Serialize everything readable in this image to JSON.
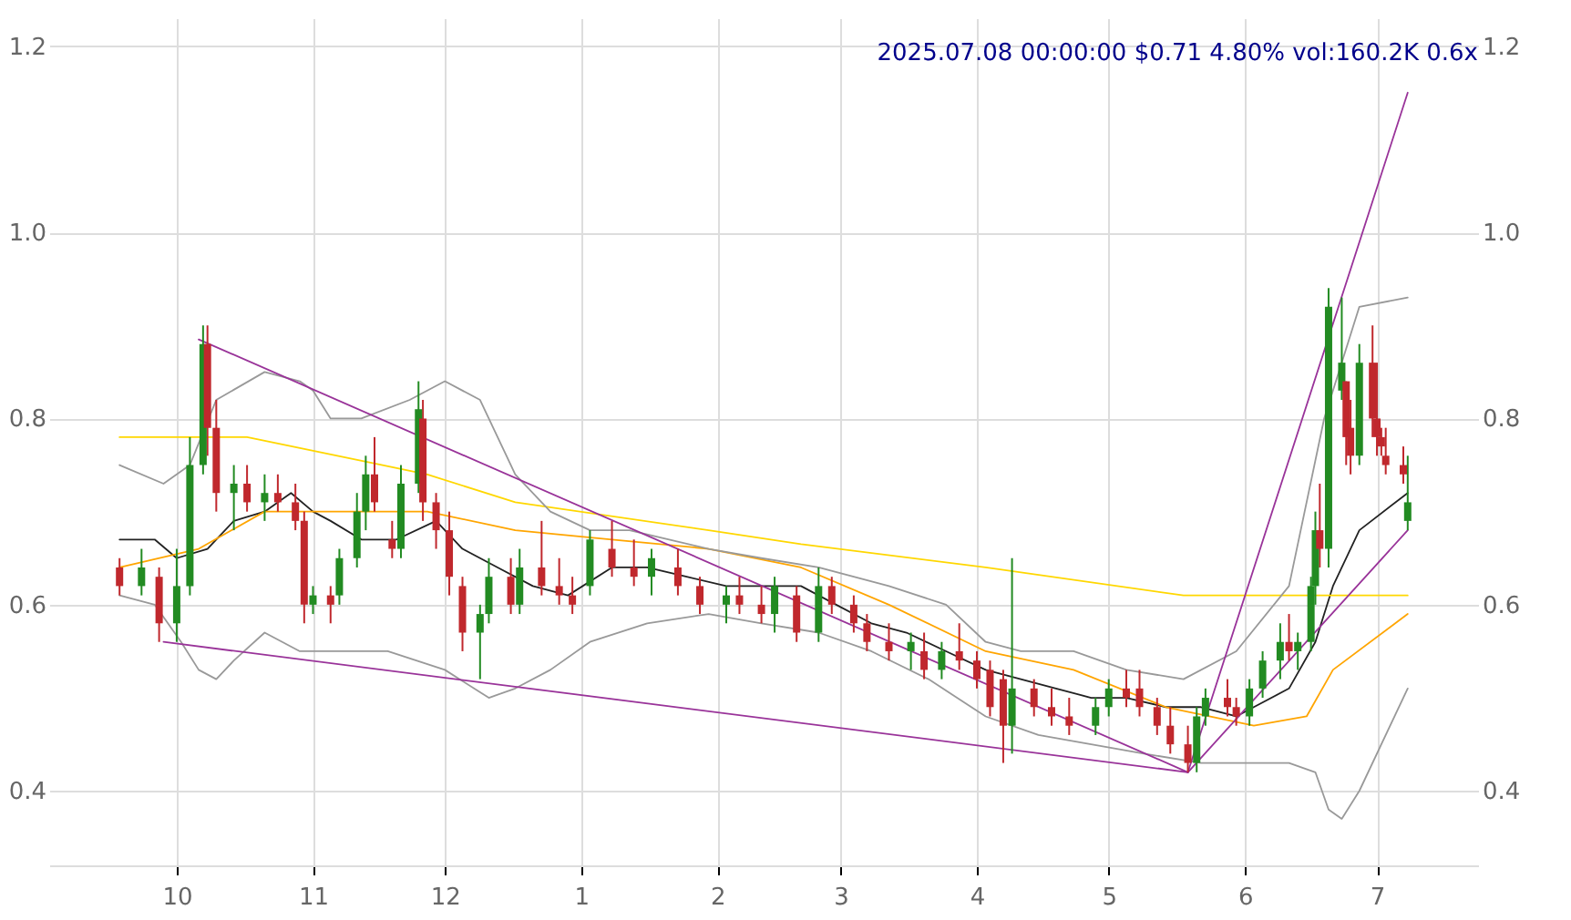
{
  "chart_data": {
    "type": "candlestick",
    "title": "2025.07.08 00:00:00 $0.71 4.80% vol:160.2K 0.6x",
    "x": [
      "2024-09-18",
      "2024-09-23",
      "2024-09-27",
      "2024-10-01",
      "2024-10-04",
      "2024-10-07",
      "2024-10-08",
      "2024-10-10",
      "2024-10-14",
      "2024-10-17",
      "2024-10-21",
      "2024-10-24",
      "2024-10-28",
      "2024-10-30",
      "2024-11-01",
      "2024-11-05",
      "2024-11-07",
      "2024-11-11",
      "2024-11-13",
      "2024-11-15",
      "2024-11-19",
      "2024-11-21",
      "2024-11-25",
      "2024-11-26",
      "2024-11-29",
      "2024-12-02",
      "2024-12-05",
      "2024-12-09",
      "2024-12-11",
      "2024-12-16",
      "2024-12-18",
      "2024-12-23",
      "2024-12-27",
      "2024-12-30",
      "2025-01-03",
      "2025-01-08",
      "2025-01-13",
      "2025-01-17",
      "2025-01-23",
      "2025-01-28",
      "2025-02-03",
      "2025-02-06",
      "2025-02-11",
      "2025-02-14",
      "2025-02-19",
      "2025-02-24",
      "2025-02-27",
      "2025-03-04",
      "2025-03-07",
      "2025-03-12",
      "2025-03-17",
      "2025-03-20",
      "2025-03-24",
      "2025-03-28",
      "2025-04-01",
      "2025-04-04",
      "2025-04-07",
      "2025-04-09",
      "2025-04-14",
      "2025-04-18",
      "2025-04-22",
      "2025-04-28",
      "2025-05-01",
      "2025-05-05",
      "2025-05-08",
      "2025-05-12",
      "2025-05-15",
      "2025-05-19",
      "2025-05-21",
      "2025-05-23",
      "2025-05-28",
      "2025-05-30",
      "2025-06-02",
      "2025-06-05",
      "2025-06-09",
      "2025-06-11",
      "2025-06-13",
      "2025-06-16",
      "2025-06-17",
      "2025-06-18",
      "2025-06-20",
      "2025-06-23",
      "2025-06-24",
      "2025-06-25",
      "2025-06-27",
      "2025-06-30",
      "2025-07-01",
      "2025-07-02",
      "2025-07-03",
      "2025-07-07",
      "2025-07-08"
    ],
    "ohlc": [
      [
        0.64,
        0.65,
        0.61,
        0.62
      ],
      [
        0.62,
        0.66,
        0.61,
        0.64
      ],
      [
        0.63,
        0.64,
        0.56,
        0.58
      ],
      [
        0.58,
        0.66,
        0.56,
        0.62
      ],
      [
        0.62,
        0.78,
        0.61,
        0.75
      ],
      [
        0.75,
        0.9,
        0.74,
        0.88
      ],
      [
        0.88,
        0.9,
        0.76,
        0.79
      ],
      [
        0.79,
        0.82,
        0.7,
        0.72
      ],
      [
        0.72,
        0.75,
        0.68,
        0.73
      ],
      [
        0.73,
        0.75,
        0.7,
        0.71
      ],
      [
        0.71,
        0.74,
        0.69,
        0.72
      ],
      [
        0.72,
        0.74,
        0.7,
        0.71
      ],
      [
        0.71,
        0.73,
        0.68,
        0.69
      ],
      [
        0.69,
        0.7,
        0.58,
        0.6
      ],
      [
        0.6,
        0.62,
        0.59,
        0.61
      ],
      [
        0.61,
        0.62,
        0.58,
        0.6
      ],
      [
        0.61,
        0.66,
        0.6,
        0.65
      ],
      [
        0.65,
        0.72,
        0.64,
        0.7
      ],
      [
        0.7,
        0.76,
        0.68,
        0.74
      ],
      [
        0.74,
        0.78,
        0.7,
        0.71
      ],
      [
        0.67,
        0.69,
        0.65,
        0.66
      ],
      [
        0.66,
        0.75,
        0.65,
        0.73
      ],
      [
        0.73,
        0.84,
        0.72,
        0.81
      ],
      [
        0.8,
        0.82,
        0.69,
        0.71
      ],
      [
        0.71,
        0.72,
        0.66,
        0.68
      ],
      [
        0.68,
        0.7,
        0.61,
        0.63
      ],
      [
        0.62,
        0.63,
        0.55,
        0.57
      ],
      [
        0.57,
        0.6,
        0.52,
        0.59
      ],
      [
        0.59,
        0.65,
        0.58,
        0.63
      ],
      [
        0.63,
        0.65,
        0.59,
        0.6
      ],
      [
        0.6,
        0.66,
        0.59,
        0.64
      ],
      [
        0.64,
        0.69,
        0.61,
        0.62
      ],
      [
        0.62,
        0.65,
        0.6,
        0.61
      ],
      [
        0.61,
        0.63,
        0.59,
        0.6
      ],
      [
        0.62,
        0.68,
        0.61,
        0.67
      ],
      [
        0.66,
        0.69,
        0.63,
        0.64
      ],
      [
        0.64,
        0.67,
        0.62,
        0.63
      ],
      [
        0.63,
        0.66,
        0.61,
        0.65
      ],
      [
        0.64,
        0.66,
        0.61,
        0.62
      ],
      [
        0.62,
        0.63,
        0.59,
        0.6
      ],
      [
        0.6,
        0.62,
        0.58,
        0.61
      ],
      [
        0.61,
        0.63,
        0.59,
        0.6
      ],
      [
        0.6,
        0.62,
        0.58,
        0.59
      ],
      [
        0.59,
        0.63,
        0.57,
        0.62
      ],
      [
        0.61,
        0.62,
        0.56,
        0.57
      ],
      [
        0.57,
        0.64,
        0.56,
        0.62
      ],
      [
        0.62,
        0.63,
        0.59,
        0.6
      ],
      [
        0.6,
        0.61,
        0.57,
        0.58
      ],
      [
        0.58,
        0.59,
        0.55,
        0.56
      ],
      [
        0.56,
        0.58,
        0.54,
        0.55
      ],
      [
        0.55,
        0.57,
        0.53,
        0.56
      ],
      [
        0.55,
        0.57,
        0.52,
        0.53
      ],
      [
        0.53,
        0.56,
        0.52,
        0.55
      ],
      [
        0.55,
        0.58,
        0.53,
        0.54
      ],
      [
        0.54,
        0.55,
        0.51,
        0.52
      ],
      [
        0.53,
        0.54,
        0.48,
        0.49
      ],
      [
        0.52,
        0.53,
        0.43,
        0.47
      ],
      [
        0.47,
        0.65,
        0.44,
        0.51
      ],
      [
        0.51,
        0.52,
        0.48,
        0.49
      ],
      [
        0.49,
        0.51,
        0.47,
        0.48
      ],
      [
        0.48,
        0.5,
        0.46,
        0.47
      ],
      [
        0.47,
        0.5,
        0.46,
        0.49
      ],
      [
        0.49,
        0.52,
        0.48,
        0.51
      ],
      [
        0.51,
        0.53,
        0.49,
        0.5
      ],
      [
        0.51,
        0.53,
        0.48,
        0.49
      ],
      [
        0.49,
        0.5,
        0.46,
        0.47
      ],
      [
        0.47,
        0.49,
        0.44,
        0.45
      ],
      [
        0.45,
        0.47,
        0.42,
        0.43
      ],
      [
        0.43,
        0.49,
        0.42,
        0.48
      ],
      [
        0.48,
        0.51,
        0.47,
        0.5
      ],
      [
        0.5,
        0.52,
        0.48,
        0.49
      ],
      [
        0.49,
        0.5,
        0.47,
        0.48
      ],
      [
        0.48,
        0.52,
        0.47,
        0.51
      ],
      [
        0.51,
        0.55,
        0.5,
        0.54
      ],
      [
        0.54,
        0.58,
        0.52,
        0.56
      ],
      [
        0.56,
        0.59,
        0.54,
        0.55
      ],
      [
        0.55,
        0.57,
        0.53,
        0.56
      ],
      [
        0.56,
        0.63,
        0.55,
        0.62
      ],
      [
        0.62,
        0.7,
        0.6,
        0.68
      ],
      [
        0.68,
        0.73,
        0.64,
        0.66
      ],
      [
        0.66,
        0.94,
        0.64,
        0.92
      ],
      [
        0.83,
        0.93,
        0.82,
        0.86
      ],
      [
        0.84,
        0.84,
        0.75,
        0.78
      ],
      [
        0.79,
        0.82,
        0.74,
        0.76
      ],
      [
        0.76,
        0.88,
        0.75,
        0.86
      ],
      [
        0.86,
        0.9,
        0.78,
        0.8
      ],
      [
        0.8,
        0.86,
        0.76,
        0.78
      ],
      [
        0.78,
        0.79,
        0.76,
        0.77
      ],
      [
        0.76,
        0.79,
        0.74,
        0.75
      ],
      [
        0.75,
        0.77,
        0.73,
        0.74
      ],
      [
        0.69,
        0.76,
        0.68,
        0.71
      ]
    ],
    "colors": [
      "#c0282d",
      "#228b22",
      "#c0282d",
      "#228b22",
      "#228b22",
      "#228b22",
      "#c0282d",
      "#c0282d",
      "#228b22",
      "#c0282d",
      "#228b22",
      "#c0282d",
      "#c0282d",
      "#c0282d",
      "#228b22",
      "#c0282d",
      "#228b22",
      "#228b22",
      "#228b22",
      "#c0282d",
      "#c0282d",
      "#228b22",
      "#228b22",
      "#c0282d",
      "#c0282d",
      "#c0282d",
      "#c0282d",
      "#228b22",
      "#228b22",
      "#c0282d",
      "#228b22",
      "#c0282d",
      "#c0282d",
      "#c0282d",
      "#228b22",
      "#c0282d",
      "#c0282d",
      "#228b22",
      "#c0282d",
      "#c0282d",
      "#228b22",
      "#c0282d",
      "#c0282d",
      "#228b22",
      "#c0282d",
      "#228b22",
      "#c0282d",
      "#c0282d",
      "#c0282d",
      "#c0282d",
      "#228b22",
      "#c0282d",
      "#228b22",
      "#c0282d",
      "#c0282d",
      "#c0282d",
      "#c0282d",
      "#228b22",
      "#c0282d",
      "#c0282d",
      "#c0282d",
      "#228b22",
      "#228b22",
      "#c0282d",
      "#c0282d",
      "#c0282d",
      "#c0282d",
      "#c0282d",
      "#228b22",
      "#228b22",
      "#c0282d",
      "#c0282d",
      "#228b22",
      "#228b22",
      "#228b22",
      "#c0282d",
      "#228b22",
      "#228b22",
      "#228b22",
      "#c0282d",
      "#228b22",
      "#228b22",
      "#c0282d",
      "#c0282d",
      "#228b22",
      "#c0282d",
      "#c0282d",
      "#c0282d",
      "#c0282d",
      "#c0282d",
      "#228b22"
    ],
    "series": [
      {
        "type": "line",
        "color": "#222222",
        "x": [
          "2024-09-18",
          "2024-09-26",
          "2024-10-01",
          "2024-10-08",
          "2024-10-14",
          "2024-10-21",
          "2024-10-27",
          "2024-11-01",
          "2024-11-05",
          "2024-11-12",
          "2024-11-20",
          "2024-11-29",
          "2024-12-05",
          "2024-12-13",
          "2024-12-21",
          "2024-12-29",
          "2025-01-08",
          "2025-01-16",
          "2025-01-25",
          "2025-02-03",
          "2025-02-11",
          "2025-02-20",
          "2025-02-28",
          "2025-03-08",
          "2025-03-16",
          "2025-03-25",
          "2025-04-03",
          "2025-04-11",
          "2025-04-19",
          "2025-04-27",
          "2025-05-05",
          "2025-05-14",
          "2025-05-22",
          "2025-05-30",
          "2025-06-03",
          "2025-06-11",
          "2025-06-17",
          "2025-06-21",
          "2025-06-27",
          "2025-07-08"
        ],
        "values": [
          0.67,
          0.67,
          0.65,
          0.66,
          0.69,
          0.7,
          0.72,
          0.7,
          0.69,
          0.67,
          0.67,
          0.69,
          0.66,
          0.64,
          0.62,
          0.61,
          0.64,
          0.64,
          0.63,
          0.62,
          0.62,
          0.62,
          0.6,
          0.58,
          0.57,
          0.55,
          0.53,
          0.52,
          0.51,
          0.5,
          0.5,
          0.49,
          0.49,
          0.48,
          0.49,
          0.51,
          0.56,
          0.62,
          0.68,
          0.72
        ]
      },
      {
        "type": "line",
        "color": "#ffd700",
        "x": [
          "2024-09-18",
          "2024-10-17",
          "2024-11-27",
          "2024-12-17",
          "2025-01-30",
          "2025-02-20",
          "2025-04-03",
          "2025-05-18",
          "2025-06-03",
          "2025-07-08"
        ],
        "values": [
          0.78,
          0.78,
          0.74,
          0.71,
          0.68,
          0.665,
          0.64,
          0.61,
          0.61,
          0.61
        ]
      },
      {
        "type": "line",
        "color": "#ffa500",
        "x": [
          "2024-09-18",
          "2024-10-06",
          "2024-10-21",
          "2024-11-05",
          "2024-11-27",
          "2024-12-17",
          "2025-01-08",
          "2025-01-30",
          "2025-02-20",
          "2025-03-12",
          "2025-04-03",
          "2025-04-23",
          "2025-05-14",
          "2025-06-03",
          "2025-06-15",
          "2025-06-21",
          "2025-07-08"
        ],
        "values": [
          0.64,
          0.66,
          0.7,
          0.7,
          0.7,
          0.68,
          0.67,
          0.66,
          0.64,
          0.6,
          0.55,
          0.53,
          0.49,
          0.47,
          0.48,
          0.53,
          0.59
        ]
      },
      {
        "type": "line",
        "color": "#999999",
        "x": [
          "2024-09-18",
          "2024-09-28",
          "2024-10-04",
          "2024-10-10",
          "2024-10-21",
          "2024-10-29",
          "2024-11-01",
          "2024-11-05",
          "2024-11-12",
          "2024-11-23",
          "2024-12-01",
          "2024-12-09",
          "2024-12-17",
          "2024-12-25",
          "2025-01-03",
          "2025-01-12",
          "2025-01-21",
          "2025-01-30",
          "2025-02-11",
          "2025-02-24",
          "2025-03-12",
          "2025-03-25",
          "2025-04-03",
          "2025-04-11",
          "2025-04-23",
          "2025-05-05",
          "2025-05-18",
          "2025-05-30",
          "2025-06-11",
          "2025-06-19",
          "2025-06-27",
          "2025-07-08"
        ],
        "values": [
          0.75,
          0.73,
          0.75,
          0.82,
          0.85,
          0.84,
          0.83,
          0.8,
          0.8,
          0.82,
          0.84,
          0.82,
          0.74,
          0.7,
          0.68,
          0.68,
          0.67,
          0.66,
          0.65,
          0.64,
          0.62,
          0.6,
          0.56,
          0.55,
          0.55,
          0.53,
          0.52,
          0.55,
          0.62,
          0.8,
          0.92,
          0.93
        ]
      },
      {
        "type": "line",
        "color": "#999999",
        "x": [
          "2024-09-18",
          "2024-09-26",
          "2024-10-02",
          "2024-10-06",
          "2024-10-10",
          "2024-10-14",
          "2024-10-21",
          "2024-10-29",
          "2024-11-05",
          "2024-11-18",
          "2024-12-01",
          "2024-12-11",
          "2024-12-17",
          "2024-12-25",
          "2025-01-03",
          "2025-01-16",
          "2025-01-30",
          "2025-02-11",
          "2025-02-24",
          "2025-03-08",
          "2025-03-21",
          "2025-04-03",
          "2025-04-15",
          "2025-04-27",
          "2025-05-09",
          "2025-05-22",
          "2025-06-03",
          "2025-06-11",
          "2025-06-17",
          "2025-06-20",
          "2025-06-23",
          "2025-06-27",
          "2025-07-08"
        ],
        "values": [
          0.61,
          0.6,
          0.56,
          0.53,
          0.52,
          0.54,
          0.57,
          0.55,
          0.55,
          0.55,
          0.53,
          0.5,
          0.51,
          0.53,
          0.56,
          0.58,
          0.59,
          0.58,
          0.57,
          0.55,
          0.52,
          0.48,
          0.46,
          0.45,
          0.44,
          0.43,
          0.43,
          0.43,
          0.42,
          0.38,
          0.37,
          0.4,
          0.51
        ]
      },
      {
        "type": "line",
        "color": "#993399",
        "x": [
          "2024-10-06",
          "2025-05-19"
        ],
        "values": [
          0.885,
          0.42
        ]
      },
      {
        "type": "line",
        "color": "#993399",
        "x": [
          "2024-09-28",
          "2025-05-19"
        ],
        "values": [
          0.56,
          0.42
        ]
      },
      {
        "type": "line",
        "color": "#993399",
        "x": [
          "2025-05-19",
          "2025-07-08"
        ],
        "values": [
          0.42,
          1.15
        ]
      },
      {
        "type": "line",
        "color": "#993399",
        "x": [
          "2025-05-19",
          "2025-07-08"
        ],
        "values": [
          0.42,
          0.68
        ]
      }
    ],
    "xlim": [
      "2024-09-02",
      "2025-07-24"
    ],
    "xticks": [
      {
        "value": "2024-10-01",
        "label": "10"
      },
      {
        "value": "2024-11-01",
        "label": "11"
      },
      {
        "value": "2024-12-01",
        "label": "12"
      },
      {
        "value": "2025-01-01",
        "label": "1"
      },
      {
        "value": "2025-02-01",
        "label": "2"
      },
      {
        "value": "2025-03-01",
        "label": "3"
      },
      {
        "value": "2025-04-01",
        "label": "4"
      },
      {
        "value": "2025-05-01",
        "label": "5"
      },
      {
        "value": "2025-06-01",
        "label": "6"
      },
      {
        "value": "2025-07-01",
        "label": "7"
      }
    ],
    "ylim": [
      0.32,
      1.23
    ],
    "yticks": [
      {
        "value": 0.4,
        "label": "0.4"
      },
      {
        "value": 0.6,
        "label": "0.6"
      },
      {
        "value": 0.8,
        "label": "0.8"
      },
      {
        "value": 1,
        "label": "1.0"
      },
      {
        "value": 1.2,
        "label": "1.2"
      }
    ],
    "y2lim": [
      0.32,
      1.23
    ],
    "y2ticks": [
      {
        "value": 0.4,
        "label": "0.4"
      },
      {
        "value": 0.6,
        "label": "0.6"
      },
      {
        "value": 0.8,
        "label": "0.8"
      },
      {
        "value": 1,
        "label": "1.0"
      },
      {
        "value": 1.2,
        "label": "1.2"
      }
    ],
    "grid": true
  }
}
